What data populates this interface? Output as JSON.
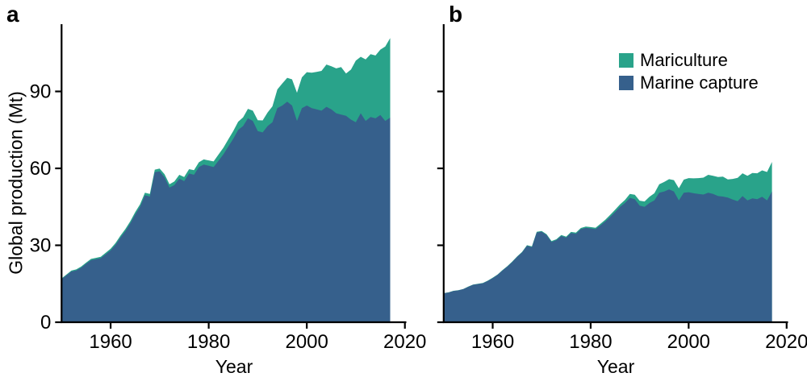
{
  "figure": {
    "panels": [
      {
        "letter": "a"
      },
      {
        "letter": "b"
      }
    ],
    "legend": [
      {
        "label": "Mariculture",
        "color": "#29a38a"
      },
      {
        "label": "Marine capture",
        "color": "#36608c"
      }
    ],
    "text_color": "#000000",
    "background": "#ffffff"
  },
  "chart_data": [
    {
      "type": "area",
      "stacked": true,
      "panel": "a",
      "xlabel": "Year",
      "ylabel": "Global production (Mt)",
      "x_start": 1950,
      "x_end": 2017,
      "x_step": 1,
      "xlim": [
        1950,
        2020
      ],
      "ylim": [
        0,
        116
      ],
      "xticks": [
        1960,
        1980,
        2000,
        2020
      ],
      "yticks": [
        0,
        30,
        60,
        90
      ],
      "ytick_labels_visible": true,
      "grid": false,
      "series": [
        {
          "name": "Marine capture",
          "color": "#36608c",
          "values": [
            16.8,
            18.3,
            19.8,
            20.2,
            21.3,
            22.8,
            24.2,
            24.6,
            25.0,
            26.5,
            28.0,
            30.2,
            33.0,
            35.5,
            38.5,
            42.0,
            45.0,
            49.5,
            49.0,
            58.5,
            58.8,
            56.5,
            52.5,
            53.5,
            56.0,
            55.0,
            58.0,
            57.5,
            60.5,
            61.5,
            61.0,
            60.5,
            63.0,
            65.5,
            68.5,
            71.5,
            75.0,
            76.5,
            79.5,
            78.5,
            74.5,
            74.0,
            76.5,
            78.0,
            83.5,
            84.5,
            86.0,
            84.5,
            78.5,
            83.5,
            84.5,
            83.5,
            83.0,
            82.5,
            84.0,
            83.0,
            81.5,
            81.0,
            80.5,
            79.0,
            78.0,
            81.5,
            78.5,
            80.0,
            79.5,
            80.8,
            78.5,
            79.8
          ]
        },
        {
          "name": "Mariculture",
          "color": "#29a38a",
          "values": [
            0.3,
            0.3,
            0.35,
            0.4,
            0.4,
            0.45,
            0.5,
            0.5,
            0.55,
            0.6,
            0.65,
            0.7,
            0.75,
            0.8,
            0.85,
            0.9,
            0.95,
            1.0,
            1.0,
            1.0,
            1.1,
            1.2,
            1.3,
            1.4,
            1.5,
            1.6,
            1.7,
            1.8,
            1.9,
            2.0,
            2.1,
            2.2,
            2.4,
            2.6,
            2.8,
            3.0,
            3.2,
            3.4,
            3.7,
            4.0,
            4.3,
            4.7,
            5.3,
            6.2,
            7.3,
            8.6,
            9.3,
            10.2,
            11.0,
            12.0,
            13.0,
            13.8,
            14.6,
            15.5,
            16.5,
            16.8,
            17.5,
            18.5,
            16.5,
            19.5,
            24.0,
            22.0,
            24.0,
            24.5,
            24.5,
            25.5,
            29.0,
            31.0
          ]
        }
      ]
    },
    {
      "type": "area",
      "stacked": true,
      "panel": "b",
      "xlabel": "Year",
      "ylabel": "",
      "x_start": 1950,
      "x_end": 2017,
      "x_step": 1,
      "xlim": [
        1950,
        2020
      ],
      "ylim": [
        0,
        116
      ],
      "xticks": [
        1960,
        1980,
        2000,
        2020
      ],
      "yticks": [
        0,
        30,
        60,
        90
      ],
      "ytick_labels_visible": false,
      "grid": false,
      "series": [
        {
          "name": "Marine capture",
          "color": "#36608c",
          "values": [
            11.3,
            11.6,
            12.2,
            12.4,
            12.9,
            13.8,
            14.6,
            14.9,
            15.2,
            16.1,
            17.2,
            18.5,
            20.2,
            21.7,
            23.5,
            25.5,
            27.2,
            29.8,
            29.3,
            35.0,
            35.3,
            34.0,
            31.3,
            32.0,
            33.6,
            33.0,
            34.8,
            34.5,
            36.3,
            36.8,
            36.6,
            36.3,
            37.8,
            39.3,
            41.1,
            43.0,
            45.0,
            46.5,
            48.5,
            48.0,
            45.5,
            45.0,
            46.5,
            47.5,
            50.5,
            51.0,
            51.8,
            51.0,
            47.5,
            50.5,
            50.7,
            50.3,
            50.0,
            49.8,
            50.5,
            50.0,
            49.2,
            49.0,
            48.6,
            47.8,
            47.2,
            49.2,
            47.5,
            48.3,
            48.0,
            48.9,
            47.5,
            51.0
          ]
        },
        {
          "name": "Mariculture",
          "color": "#29a38a",
          "values": [
            0.05,
            0.05,
            0.06,
            0.07,
            0.08,
            0.09,
            0.1,
            0.1,
            0.11,
            0.12,
            0.13,
            0.14,
            0.15,
            0.16,
            0.18,
            0.2,
            0.22,
            0.24,
            0.26,
            0.28,
            0.3,
            0.32,
            0.34,
            0.36,
            0.38,
            0.4,
            0.42,
            0.44,
            0.46,
            0.48,
            0.5,
            0.55,
            0.6,
            0.7,
            0.8,
            0.9,
            1.0,
            1.2,
            1.5,
            1.7,
            1.9,
            2.1,
            2.4,
            2.8,
            3.3,
            3.7,
            4.0,
            4.4,
            4.7,
            5.1,
            5.5,
            5.8,
            6.2,
            6.6,
            7.0,
            7.1,
            7.4,
            7.8,
            7.1,
            8.1,
            9.1,
            8.9,
            9.6,
            9.9,
            10.1,
            10.3,
            11.1,
            11.5
          ]
        }
      ]
    }
  ]
}
